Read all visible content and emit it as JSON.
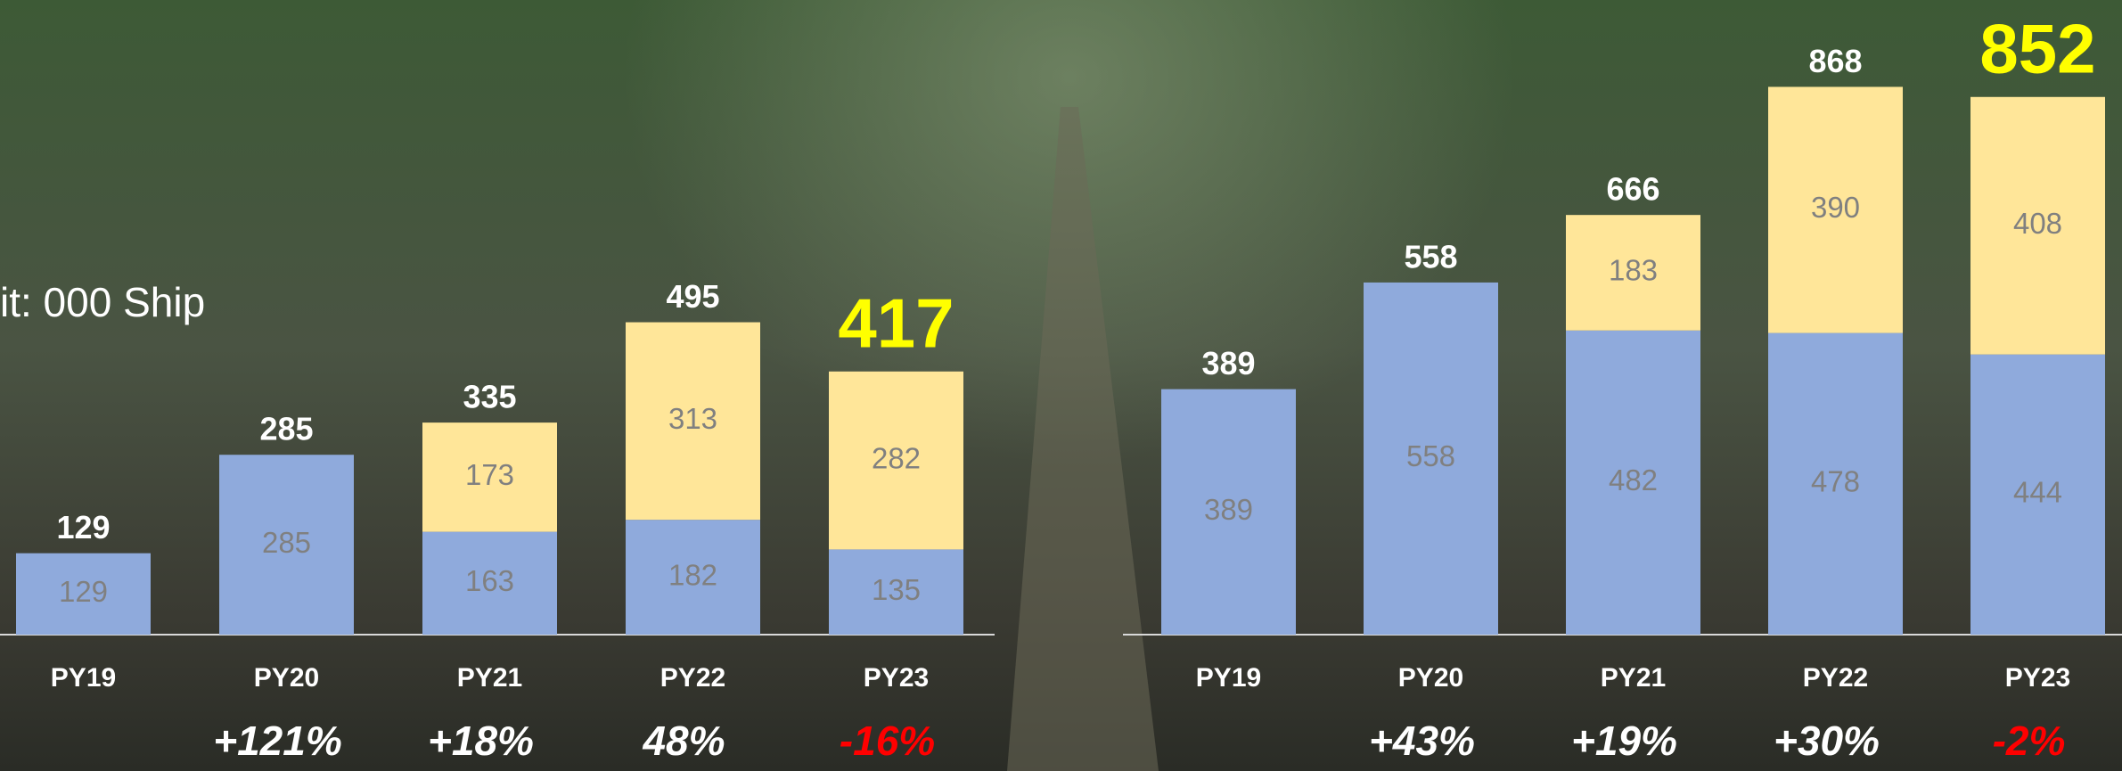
{
  "subtitle": "it: 000 Ship",
  "chart_data": [
    {
      "type": "bar",
      "categories": [
        "PY19",
        "PY20",
        "PY21",
        "PY22",
        "PY23"
      ],
      "series": [
        {
          "color": "#8faadc",
          "values": [
            129,
            285,
            163,
            182,
            135
          ]
        },
        {
          "color": "#ffe699",
          "values": [
            null,
            null,
            173,
            313,
            282
          ]
        }
      ],
      "totals": [
        129,
        285,
        335,
        495,
        417
      ],
      "highlight_color": "#ffff00",
      "growth": {
        "values": [
          null,
          121,
          18,
          48,
          -16
        ],
        "value_labels": [
          null,
          "+121%",
          "+18%",
          "48%",
          "-16%"
        ]
      }
    },
    {
      "type": "bar",
      "categories": [
        "PY19",
        "PY20",
        "PY21",
        "PY22",
        "PY23"
      ],
      "series": [
        {
          "color": "#8faadc",
          "values": [
            389,
            558,
            482,
            478,
            444
          ]
        },
        {
          "color": "#ffe699",
          "values": [
            null,
            null,
            183,
            390,
            408
          ]
        }
      ],
      "totals": [
        389,
        558,
        666,
        868,
        852
      ],
      "highlight_color": "#ffff00",
      "growth": {
        "values": [
          null,
          43,
          19,
          30,
          -2
        ],
        "value_labels": [
          null,
          "+43%",
          "+19%",
          "+30%",
          "-2%"
        ]
      }
    }
  ]
}
